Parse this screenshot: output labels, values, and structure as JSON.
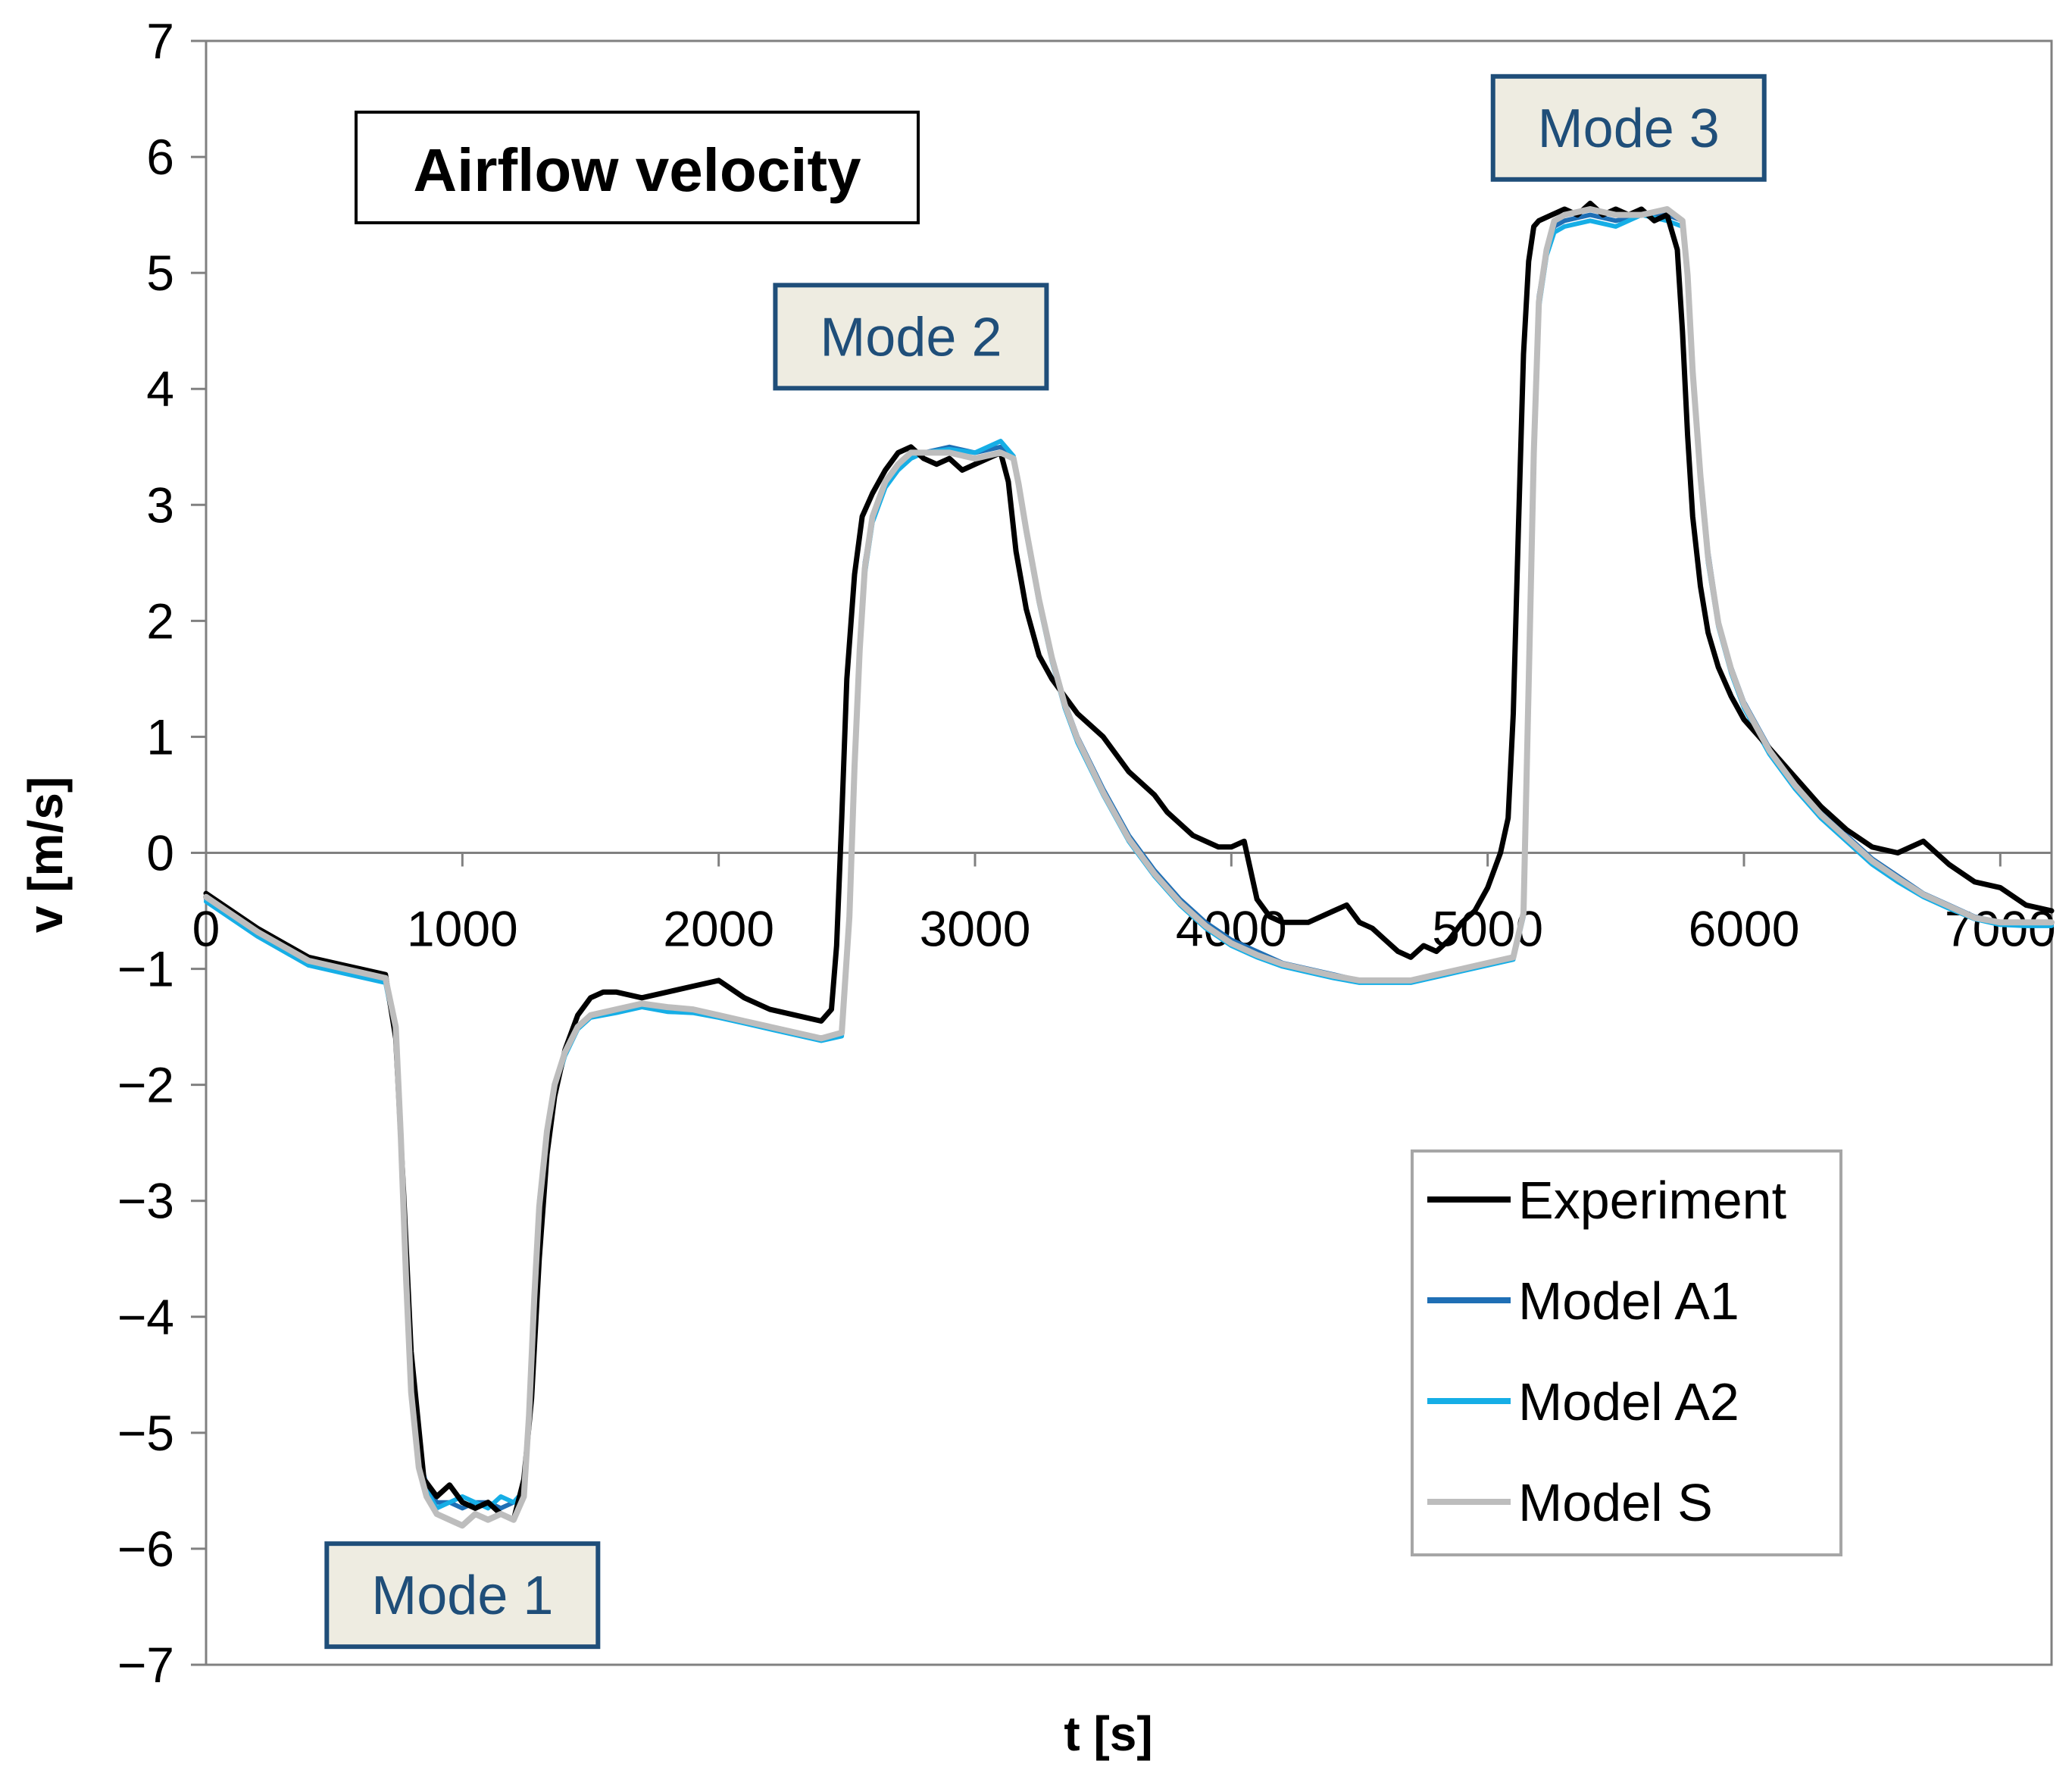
{
  "chart_data": {
    "type": "line",
    "title": "Airflow velocity",
    "xlabel": "t [s]",
    "ylabel": "v [m/s]",
    "xlim": [
      0,
      7200
    ],
    "ylim": [
      -7,
      7
    ],
    "x_ticks": [
      0,
      1000,
      2000,
      3000,
      4000,
      5000,
      6000,
      7000
    ],
    "x_tick_labels": [
      "0",
      "1000",
      "2000",
      "3000",
      "4000",
      "5000",
      "6000",
      "7000"
    ],
    "y_ticks": [
      7,
      6,
      5,
      4,
      3,
      2,
      1,
      0,
      -1,
      -2,
      -3,
      -4,
      -5,
      -6,
      -7
    ],
    "y_tick_labels": [
      "7",
      "6",
      "5",
      "4",
      "3",
      "2",
      "1",
      "0",
      "−1",
      "−2",
      "−3",
      "−4",
      "−5",
      "−6",
      "−7"
    ],
    "grid": false,
    "legend_position": "bottom-right",
    "annotations": [
      {
        "label": "Mode 1",
        "x": 1000,
        "y": -6.4
      },
      {
        "label": "Mode 2",
        "x": 2750,
        "y": 4.45
      },
      {
        "label": "Mode 3",
        "x": 5550,
        "y": 6.25
      }
    ],
    "series": [
      {
        "name": "Experiment",
        "color": "#000000",
        "x": [
          0,
          200,
          400,
          600,
          700,
          740,
          770,
          800,
          850,
          900,
          950,
          1000,
          1050,
          1100,
          1150,
          1200,
          1240,
          1270,
          1300,
          1330,
          1360,
          1400,
          1450,
          1500,
          1550,
          1600,
          1700,
          1800,
          1900,
          2000,
          2100,
          2200,
          2300,
          2400,
          2440,
          2460,
          2480,
          2500,
          2530,
          2560,
          2600,
          2650,
          2700,
          2750,
          2800,
          2850,
          2900,
          2950,
          3000,
          3050,
          3100,
          3130,
          3160,
          3200,
          3250,
          3300,
          3350,
          3400,
          3450,
          3500,
          3550,
          3600,
          3650,
          3700,
          3750,
          3800,
          3850,
          3900,
          3950,
          4000,
          4050,
          4100,
          4150,
          4200,
          4300,
          4400,
          4450,
          4500,
          4550,
          4600,
          4650,
          4700,
          4750,
          4800,
          4850,
          4900,
          4950,
          5000,
          5050,
          5080,
          5100,
          5120,
          5140,
          5160,
          5180,
          5200,
          5250,
          5300,
          5350,
          5400,
          5450,
          5500,
          5550,
          5600,
          5650,
          5700,
          5740,
          5760,
          5780,
          5800,
          5830,
          5860,
          5900,
          5950,
          6000,
          6100,
          6200,
          6300,
          6400,
          6500,
          6600,
          6700,
          6800,
          6900,
          7000,
          7100,
          7200
        ],
        "y": [
          -0.35,
          -0.65,
          -0.9,
          -1.0,
          -1.05,
          -1.6,
          -2.9,
          -4.3,
          -5.4,
          -5.55,
          -5.45,
          -5.6,
          -5.65,
          -5.6,
          -5.7,
          -5.75,
          -5.4,
          -4.7,
          -3.5,
          -2.6,
          -2.1,
          -1.7,
          -1.4,
          -1.25,
          -1.2,
          -1.2,
          -1.25,
          -1.2,
          -1.15,
          -1.1,
          -1.25,
          -1.35,
          -1.4,
          -1.45,
          -1.35,
          -0.8,
          0.3,
          1.5,
          2.4,
          2.9,
          3.1,
          3.3,
          3.45,
          3.5,
          3.4,
          3.35,
          3.4,
          3.3,
          3.35,
          3.4,
          3.45,
          3.2,
          2.6,
          2.1,
          1.7,
          1.5,
          1.35,
          1.2,
          1.1,
          1.0,
          0.85,
          0.7,
          0.6,
          0.5,
          0.35,
          0.25,
          0.15,
          0.1,
          0.05,
          0.05,
          0.1,
          -0.4,
          -0.55,
          -0.6,
          -0.6,
          -0.5,
          -0.45,
          -0.6,
          -0.65,
          -0.75,
          -0.85,
          -0.9,
          -0.8,
          -0.85,
          -0.75,
          -0.6,
          -0.5,
          -0.3,
          0.0,
          0.3,
          1.2,
          2.8,
          4.3,
          5.1,
          5.4,
          5.45,
          5.5,
          5.55,
          5.5,
          5.6,
          5.5,
          5.55,
          5.5,
          5.55,
          5.45,
          5.5,
          5.2,
          4.5,
          3.6,
          2.9,
          2.3,
          1.9,
          1.6,
          1.35,
          1.15,
          0.9,
          0.65,
          0.4,
          0.2,
          0.05,
          0.0,
          0.1,
          -0.1,
          -0.25,
          -0.3,
          -0.45,
          -0.5
        ]
      },
      {
        "name": "Model A1",
        "color": "#1f6fb5",
        "x": [
          0,
          200,
          400,
          600,
          700,
          740,
          760,
          780,
          800,
          830,
          860,
          900,
          950,
          1000,
          1050,
          1100,
          1150,
          1200,
          1240,
          1260,
          1280,
          1300,
          1330,
          1360,
          1400,
          1450,
          1500,
          1600,
          1700,
          1800,
          1900,
          2000,
          2100,
          2200,
          2300,
          2400,
          2480,
          2510,
          2530,
          2550,
          2570,
          2600,
          2650,
          2700,
          2750,
          2800,
          2900,
          3000,
          3100,
          3150,
          3170,
          3200,
          3250,
          3300,
          3350,
          3400,
          3500,
          3600,
          3700,
          3800,
          3900,
          4000,
          4100,
          4200,
          4300,
          4400,
          4500,
          4600,
          4700,
          4800,
          4900,
          5000,
          5100,
          5140,
          5160,
          5180,
          5200,
          5230,
          5260,
          5300,
          5400,
          5500,
          5600,
          5700,
          5760,
          5780,
          5800,
          5830,
          5860,
          5900,
          5950,
          6000,
          6100,
          6200,
          6300,
          6400,
          6500,
          6600,
          6700,
          6800,
          6900,
          7000,
          7100,
          7200
        ],
        "y": [
          -0.4,
          -0.7,
          -0.95,
          -1.05,
          -1.1,
          -1.5,
          -2.4,
          -3.6,
          -4.6,
          -5.2,
          -5.45,
          -5.6,
          -5.6,
          -5.65,
          -5.6,
          -5.6,
          -5.65,
          -5.6,
          -5.5,
          -4.8,
          -3.8,
          -3.0,
          -2.4,
          -2.0,
          -1.7,
          -1.5,
          -1.4,
          -1.35,
          -1.3,
          -1.35,
          -1.35,
          -1.4,
          -1.45,
          -1.5,
          -1.55,
          -1.6,
          -1.55,
          -0.5,
          0.8,
          1.8,
          2.5,
          2.9,
          3.2,
          3.35,
          3.45,
          3.45,
          3.5,
          3.45,
          3.5,
          3.4,
          3.2,
          2.8,
          2.2,
          1.7,
          1.3,
          1.0,
          0.55,
          0.15,
          -0.15,
          -0.4,
          -0.6,
          -0.75,
          -0.85,
          -0.95,
          -1.0,
          -1.05,
          -1.1,
          -1.1,
          -1.1,
          -1.05,
          -1.0,
          -0.95,
          -0.9,
          -0.5,
          1.5,
          3.5,
          4.8,
          5.2,
          5.4,
          5.45,
          5.5,
          5.45,
          5.5,
          5.5,
          5.45,
          5.0,
          4.2,
          3.3,
          2.6,
          2.0,
          1.6,
          1.3,
          0.9,
          0.6,
          0.35,
          0.15,
          -0.05,
          -0.2,
          -0.35,
          -0.45,
          -0.55,
          -0.6,
          -0.6,
          -0.6
        ]
      },
      {
        "name": "Model A2",
        "color": "#16aee6",
        "x": [
          0,
          200,
          400,
          600,
          700,
          740,
          760,
          780,
          800,
          830,
          860,
          900,
          950,
          1000,
          1050,
          1100,
          1150,
          1200,
          1240,
          1260,
          1280,
          1300,
          1330,
          1360,
          1400,
          1450,
          1500,
          1600,
          1700,
          1800,
          1900,
          2000,
          2100,
          2200,
          2300,
          2400,
          2480,
          2510,
          2530,
          2550,
          2570,
          2600,
          2650,
          2700,
          2750,
          2800,
          2900,
          3000,
          3100,
          3150,
          3170,
          3200,
          3250,
          3300,
          3350,
          3400,
          3500,
          3600,
          3700,
          3800,
          3900,
          4000,
          4100,
          4200,
          4300,
          4400,
          4500,
          4600,
          4700,
          4800,
          4900,
          5000,
          5100,
          5140,
          5160,
          5180,
          5200,
          5230,
          5260,
          5300,
          5400,
          5500,
          5600,
          5700,
          5760,
          5780,
          5800,
          5830,
          5860,
          5900,
          5950,
          6000,
          6100,
          6200,
          6300,
          6400,
          6500,
          6600,
          6700,
          6800,
          6900,
          7000,
          7100,
          7200
        ],
        "y": [
          -0.42,
          -0.72,
          -0.97,
          -1.07,
          -1.12,
          -1.55,
          -2.5,
          -3.7,
          -4.7,
          -5.25,
          -5.5,
          -5.65,
          -5.6,
          -5.55,
          -5.6,
          -5.65,
          -5.55,
          -5.6,
          -5.5,
          -4.9,
          -3.9,
          -3.1,
          -2.45,
          -2.05,
          -1.75,
          -1.52,
          -1.42,
          -1.38,
          -1.33,
          -1.37,
          -1.38,
          -1.42,
          -1.47,
          -1.52,
          -1.57,
          -1.62,
          -1.58,
          -0.6,
          0.7,
          1.7,
          2.4,
          2.85,
          3.15,
          3.3,
          3.4,
          3.45,
          3.48,
          3.45,
          3.55,
          3.42,
          3.15,
          2.75,
          2.15,
          1.65,
          1.25,
          0.95,
          0.5,
          0.1,
          -0.2,
          -0.45,
          -0.65,
          -0.8,
          -0.9,
          -0.98,
          -1.03,
          -1.08,
          -1.12,
          -1.12,
          -1.12,
          -1.07,
          -1.02,
          -0.97,
          -0.92,
          -0.55,
          1.4,
          3.4,
          4.7,
          5.15,
          5.35,
          5.4,
          5.45,
          5.4,
          5.5,
          5.45,
          5.4,
          4.95,
          4.1,
          3.2,
          2.5,
          1.95,
          1.55,
          1.25,
          0.85,
          0.55,
          0.3,
          0.1,
          -0.1,
          -0.25,
          -0.38,
          -0.48,
          -0.57,
          -0.62,
          -0.63,
          -0.63
        ]
      },
      {
        "name": "Model S",
        "color": "#bdbdbd",
        "x": [
          0,
          200,
          400,
          600,
          700,
          740,
          760,
          780,
          800,
          830,
          860,
          900,
          950,
          1000,
          1050,
          1100,
          1150,
          1200,
          1240,
          1260,
          1280,
          1300,
          1330,
          1360,
          1400,
          1450,
          1500,
          1600,
          1700,
          1800,
          1900,
          2000,
          2100,
          2200,
          2300,
          2400,
          2480,
          2510,
          2530,
          2550,
          2570,
          2600,
          2650,
          2700,
          2750,
          2800,
          2900,
          3000,
          3100,
          3150,
          3170,
          3200,
          3250,
          3300,
          3350,
          3400,
          3500,
          3600,
          3700,
          3800,
          3900,
          4000,
          4100,
          4200,
          4300,
          4400,
          4500,
          4600,
          4700,
          4800,
          4900,
          5000,
          5100,
          5140,
          5160,
          5180,
          5200,
          5230,
          5260,
          5300,
          5400,
          5500,
          5600,
          5700,
          5760,
          5780,
          5800,
          5830,
          5860,
          5900,
          5950,
          6000,
          6100,
          6200,
          6300,
          6400,
          6500,
          6600,
          6700,
          6800,
          6900,
          7000,
          7100,
          7200
        ],
        "y": [
          -0.38,
          -0.68,
          -0.93,
          -1.03,
          -1.08,
          -1.5,
          -2.45,
          -3.65,
          -4.65,
          -5.3,
          -5.55,
          -5.7,
          -5.75,
          -5.8,
          -5.7,
          -5.75,
          -5.7,
          -5.75,
          -5.55,
          -4.85,
          -3.85,
          -3.05,
          -2.4,
          -2.0,
          -1.72,
          -1.5,
          -1.4,
          -1.35,
          -1.3,
          -1.33,
          -1.35,
          -1.4,
          -1.45,
          -1.5,
          -1.55,
          -1.6,
          -1.55,
          -0.55,
          0.75,
          1.75,
          2.45,
          2.9,
          3.2,
          3.35,
          3.45,
          3.45,
          3.45,
          3.4,
          3.45,
          3.4,
          3.18,
          2.78,
          2.18,
          1.68,
          1.28,
          0.98,
          0.52,
          0.12,
          -0.18,
          -0.43,
          -0.63,
          -0.78,
          -0.88,
          -0.96,
          -1.01,
          -1.06,
          -1.1,
          -1.1,
          -1.1,
          -1.05,
          -1.0,
          -0.95,
          -0.9,
          -0.52,
          1.45,
          3.45,
          4.75,
          5.2,
          5.45,
          5.5,
          5.55,
          5.5,
          5.5,
          5.55,
          5.45,
          4.98,
          4.15,
          3.25,
          2.55,
          1.98,
          1.58,
          1.28,
          0.88,
          0.58,
          0.33,
          0.13,
          -0.07,
          -0.22,
          -0.36,
          -0.46,
          -0.56,
          -0.6,
          -0.6,
          -0.6
        ]
      }
    ]
  }
}
